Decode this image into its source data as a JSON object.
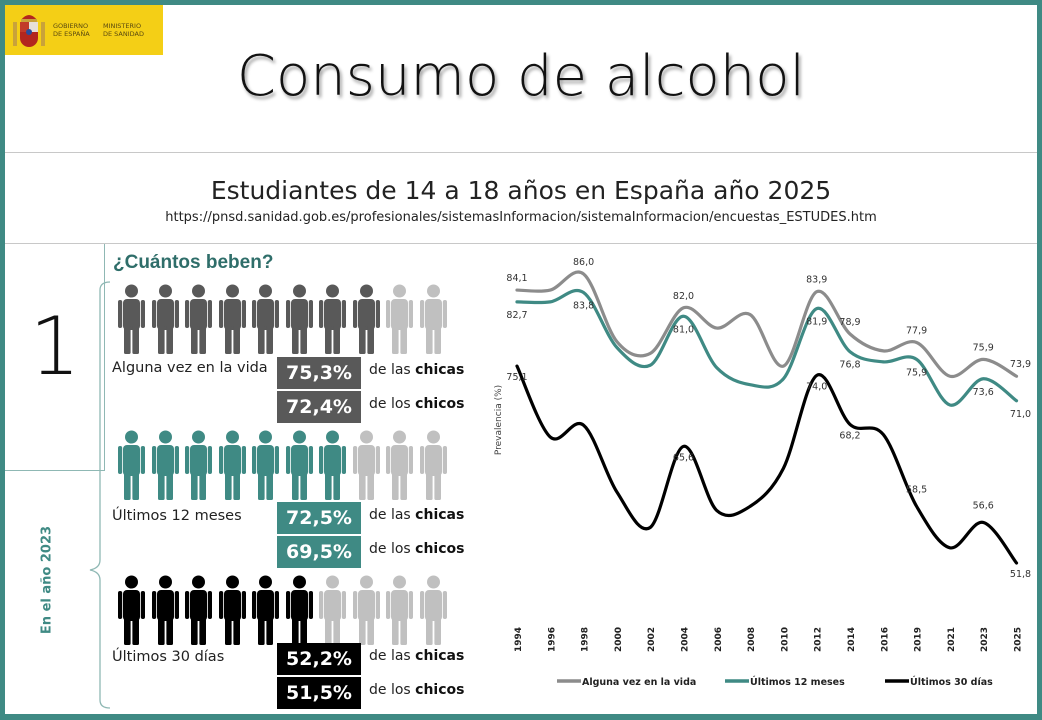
{
  "header": {
    "logo_text_1": "GOBIERNO DE ESPAÑA",
    "logo_text_2": "MINISTERIO DE SANIDAD",
    "title": "Consumo de alcohol",
    "subtitle": "Estudiantes de 14 a 18 años en España año 2025",
    "url": "https://pnsd.sanidad.gob.es/profesionales/sistemasInformacion/sistemaInformacion/encuestas_ESTUDES.htm"
  },
  "section": {
    "number": "1",
    "question": "¿Cuántos beben?",
    "year_label": "En el año 2023"
  },
  "colors": {
    "frame": "#3f8a84",
    "grey": "#595959",
    "teal": "#3f8a84",
    "black": "#000000",
    "inactive": "#c0c0c0"
  },
  "groups": [
    {
      "label": "Alguna vez en la vida",
      "filled": 8,
      "total": 10,
      "color": "#595959",
      "girls_value": "75,3%",
      "girls_prefix": "de las ",
      "girls_word": "chicas",
      "boys_value": "72,4%",
      "boys_prefix": "de los ",
      "boys_word": "chicos"
    },
    {
      "label": "Últimos 12 meses",
      "filled": 7,
      "total": 10,
      "color": "#3f8a84",
      "girls_value": "72,5%",
      "girls_prefix": "de las ",
      "girls_word": "chicas",
      "boys_value": "69,5%",
      "boys_prefix": "de los ",
      "boys_word": "chicos"
    },
    {
      "label": "Últimos 30 días",
      "filled": 6,
      "total": 10,
      "color": "#000000",
      "girls_value": "52,2%",
      "girls_prefix": "de las ",
      "girls_word": "chicas",
      "boys_value": "51,5%",
      "boys_prefix": "de los ",
      "boys_word": "chicos"
    }
  ],
  "chart_data": {
    "type": "line",
    "ylabel": "Prevalencia (%)",
    "categories": [
      "1994",
      "1996",
      "1998",
      "2000",
      "2002",
      "2004",
      "2006",
      "2008",
      "2010",
      "2012",
      "2014",
      "2016",
      "2019",
      "2021",
      "2023",
      "2025"
    ],
    "grid": false,
    "legend": "bottom",
    "smooth": true,
    "series": [
      {
        "name": "Alguna vez en la vida",
        "color": "#8c8c8c",
        "values": [
          84.1,
          84.1,
          86.0,
          78.0,
          76.6,
          82.0,
          79.6,
          81.2,
          75.1,
          83.9,
          78.9,
          76.9,
          77.9,
          73.9,
          75.9,
          73.9
        ],
        "labels": {
          "0": "84,1",
          "2": "86,0",
          "5": "82,0",
          "9": "83,9",
          "10": "78,9",
          "12": "77,9",
          "14": "75,9",
          "15": "73,9"
        }
      },
      {
        "name": "Últimos 12 meses",
        "color": "#3f8a84",
        "values": [
          82.7,
          82.7,
          83.8,
          77.3,
          75.2,
          81.0,
          74.9,
          72.9,
          73.6,
          81.9,
          76.8,
          75.6,
          75.9,
          70.5,
          73.6,
          71.0
        ],
        "labels": {
          "0": "82,7",
          "2": "83,8",
          "5": "81,0",
          "9": "81,9",
          "10": "76,8",
          "12": "75,9",
          "14": "73,6",
          "15": "71,0"
        }
      },
      {
        "name": "Últimos 30 días",
        "color": "#000000",
        "values": [
          75.1,
          66.7,
          68.1,
          60.2,
          56.0,
          65.6,
          58.0,
          58.5,
          63.0,
          74.0,
          68.2,
          67.0,
          58.5,
          53.6,
          56.6,
          51.8
        ],
        "labels": {
          "0": "75,1",
          "5": "65,6",
          "9": "74,0",
          "10": "68,2",
          "12": "58,5",
          "14": "56,6",
          "15": "51,8"
        }
      }
    ]
  }
}
